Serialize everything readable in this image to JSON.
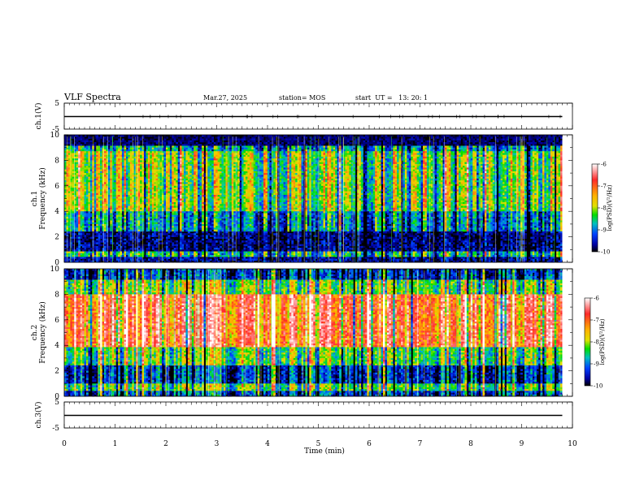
{
  "header": {
    "title": "VLF Spectra",
    "date": "Mar.27, 2025",
    "station": "station= MOS",
    "start": "start  UT =   13: 20: 1"
  },
  "colorbar": {
    "label": "log(PSD)(V²/Hz)",
    "ticks": [
      "-6",
      "-7",
      "-8",
      "-9",
      "-10"
    ],
    "colors": [
      "#ffffff",
      "#ff2a2a",
      "#ffb000",
      "#e0e000",
      "#00dd00",
      "#00c0c0",
      "#0040ff",
      "#0000a0",
      "#000000"
    ]
  },
  "chart_data": [
    {
      "type": "line",
      "panel": "ch1-waveform",
      "ylabel": "ch.1(V)",
      "ylim": [
        -5,
        5
      ],
      "y_ticks": [
        "5",
        "-5"
      ],
      "series": [
        {
          "x": [
            0,
            9.8
          ],
          "y": [
            0,
            0
          ]
        }
      ]
    },
    {
      "type": "heatmap",
      "panel": "ch1-spectrogram",
      "ylabel": "ch.1\nFrequency (kHz)",
      "ylim": [
        0,
        10
      ],
      "y_ticks": [
        "0",
        "2",
        "4",
        "6",
        "8",
        "10"
      ],
      "x_range": [
        0,
        9.8
      ],
      "bands": [
        {
          "f0": 0,
          "f1": 0.5,
          "level": -9.6
        },
        {
          "f0": 0.5,
          "f1": 0.9,
          "level": -8.6
        },
        {
          "f0": 0.9,
          "f1": 2.5,
          "level": -9.7
        },
        {
          "f0": 2.5,
          "f1": 4.0,
          "level": -8.9
        },
        {
          "f0": 4.0,
          "f1": 8.7,
          "level": -8.1
        },
        {
          "f0": 8.7,
          "f1": 9.2,
          "level": -8.8
        },
        {
          "f0": 9.2,
          "f1": 10,
          "level": -10
        }
      ]
    },
    {
      "type": "heatmap",
      "panel": "ch2-spectrogram",
      "ylabel": "ch.2\nFrequency (kHz)",
      "ylim": [
        0,
        10
      ],
      "y_ticks": [
        "0",
        "2",
        "4",
        "6",
        "8",
        "10"
      ],
      "x_range": [
        0,
        9.8
      ],
      "bands": [
        {
          "f0": 0,
          "f1": 0.4,
          "level": -9.3
        },
        {
          "f0": 0.4,
          "f1": 1.0,
          "level": -8.3
        },
        {
          "f0": 1.0,
          "f1": 2.4,
          "level": -9.4
        },
        {
          "f0": 2.4,
          "f1": 3.8,
          "level": -8.3
        },
        {
          "f0": 3.8,
          "f1": 8.0,
          "level": -7.0
        },
        {
          "f0": 8.0,
          "f1": 9.2,
          "level": -8.2
        },
        {
          "f0": 9.2,
          "f1": 10,
          "level": -9.4
        }
      ]
    },
    {
      "type": "line",
      "panel": "ch3-waveform",
      "ylabel": "ch.3(V)",
      "ylim": [
        -5,
        5
      ],
      "y_ticks": [
        "5",
        "-5"
      ],
      "series": [
        {
          "x": [
            0,
            9.8
          ],
          "y": [
            0,
            0
          ]
        }
      ]
    }
  ],
  "x_axis": {
    "label": "Time (min)",
    "range": [
      0,
      10
    ],
    "ticks": [
      "0",
      "1",
      "2",
      "3",
      "4",
      "5",
      "6",
      "7",
      "8",
      "9",
      "10"
    ]
  }
}
